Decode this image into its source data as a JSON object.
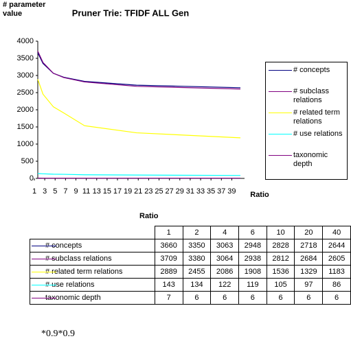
{
  "chart_data": {
    "type": "line",
    "title": "Pruner Trie: TFIDF ALL Gen",
    "y_label": "# parameter value",
    "x_label": "Ratio",
    "x": [
      1,
      2,
      4,
      6,
      10,
      20,
      40
    ],
    "xlim": [
      1,
      40
    ],
    "xticks": [
      1,
      3,
      5,
      7,
      9,
      11,
      13,
      15,
      17,
      19,
      21,
      23,
      25,
      27,
      29,
      31,
      33,
      35,
      37,
      39
    ],
    "ylim": [
      0,
      4000
    ],
    "yticks": [
      0,
      500,
      1000,
      1500,
      2000,
      2500,
      3000,
      3500,
      4000
    ],
    "grid": false,
    "legend": "right",
    "series": [
      {
        "name": "# concepts",
        "color": "#000080",
        "values": [
          3660,
          3350,
          3063,
          2948,
          2828,
          2718,
          2644
        ]
      },
      {
        "name": "# subclass relations",
        "color": "#800080",
        "values": [
          3709,
          3380,
          3064,
          2938,
          2812,
          2684,
          2605
        ]
      },
      {
        "name": "# related term relations",
        "color": "#ffff00",
        "values": [
          2889,
          2455,
          2086,
          1908,
          1536,
          1329,
          1183
        ]
      },
      {
        "name": "# use relations",
        "color": "#00ffff",
        "values": [
          143,
          134,
          122,
          119,
          105,
          97,
          86
        ]
      },
      {
        "name": "taxonomic depth",
        "color": "#800080",
        "values": [
          7,
          6,
          6,
          6,
          6,
          6,
          6
        ]
      }
    ]
  },
  "table": {
    "title": "Ratio"
  },
  "footnote": "*0.9*0.9"
}
